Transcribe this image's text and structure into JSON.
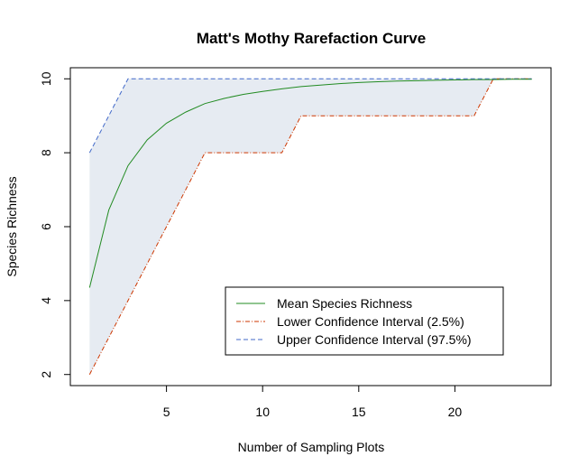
{
  "chart_data": {
    "type": "line",
    "title": "Matt's Mothy Rarefaction Curve",
    "xlabel": "Number of Sampling Plots",
    "ylabel": "Species Richness",
    "xlim": [
      0,
      25
    ],
    "ylim": [
      1.7,
      10.3
    ],
    "x_ticks": [
      5,
      10,
      15,
      20
    ],
    "y_ticks": [
      2,
      4,
      6,
      8,
      10
    ],
    "x": [
      1,
      2,
      3,
      4,
      5,
      6,
      7,
      8,
      9,
      10,
      11,
      12,
      13,
      14,
      15,
      16,
      17,
      18,
      19,
      20,
      21,
      22,
      23,
      24
    ],
    "series": [
      {
        "name": "Mean Species Richness",
        "color": "#228B22",
        "dash": "solid",
        "values": [
          4.35,
          6.45,
          7.65,
          8.35,
          8.8,
          9.1,
          9.33,
          9.47,
          9.58,
          9.66,
          9.73,
          9.79,
          9.83,
          9.87,
          9.9,
          9.92,
          9.94,
          9.95,
          9.96,
          9.97,
          9.98,
          9.98,
          9.99,
          9.99
        ]
      },
      {
        "name": "Lower Confidence Interval (2.5%)",
        "color": "#CD3700",
        "dash": "dashdot",
        "values": [
          2,
          3,
          4,
          5,
          6,
          7,
          8,
          8,
          8,
          8,
          8,
          9,
          9,
          9,
          9,
          9,
          9,
          9,
          9,
          9,
          9,
          10,
          10,
          10
        ]
      },
      {
        "name": "Upper Confidence Interval (97.5%)",
        "color": "#4169C9",
        "dash": "dashed",
        "values": [
          8,
          9,
          10,
          10,
          10,
          10,
          10,
          10,
          10,
          10,
          10,
          10,
          10,
          10,
          10,
          10,
          10,
          10,
          10,
          10,
          10,
          10,
          10,
          10
        ]
      }
    ],
    "band_color": "#E6EBF2",
    "legend_position": "bottom-right"
  }
}
